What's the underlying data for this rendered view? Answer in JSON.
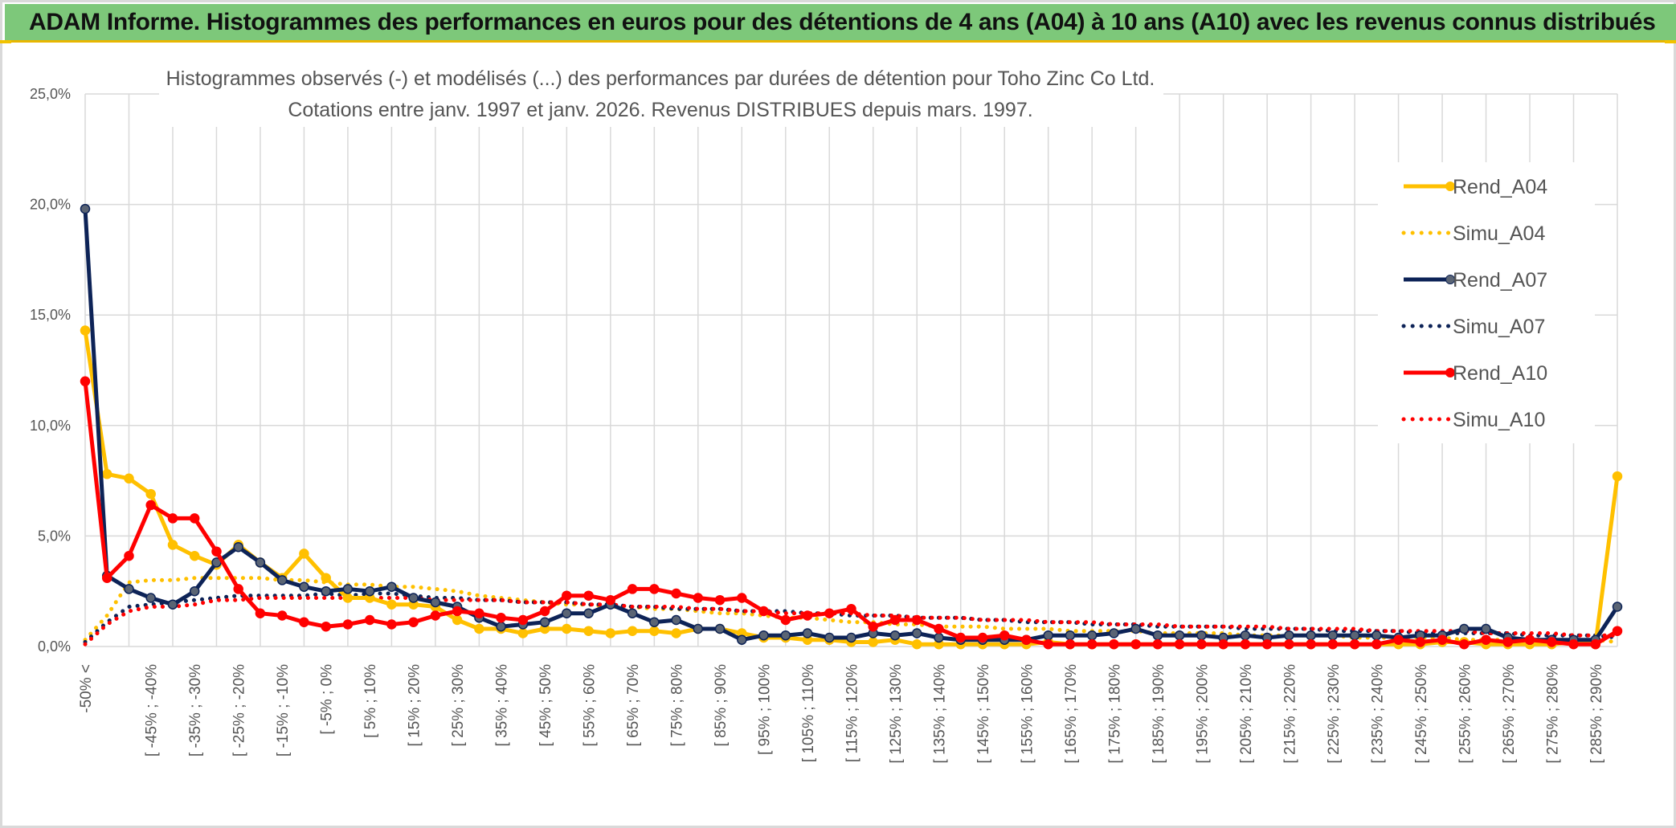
{
  "header": {
    "title": "ADAM Informe. Histogrammes des performances en euros pour des détentions de 4 ans (A04) à 10 ans (A10) avec les revenus connus distribués"
  },
  "colors": {
    "banner": "#7dc87a",
    "A04": "#ffc000",
    "A07": "#0d2357",
    "A10": "#ff0000",
    "grid": "#d9d9d9"
  },
  "chart_data": {
    "type": "line",
    "title": "Histogrammes observés (-) et modélisés (...) des performances par durées de détention pour Toho Zinc Co Ltd.",
    "subtitle": "Cotations entre janv. 1997 et janv. 2026. Revenus DISTRIBUES depuis mars. 1997.",
    "ylim": [
      0,
      25
    ],
    "yticks": [
      "0,0%",
      "5,0%",
      "10,0%",
      "15,0%",
      "20,0%",
      "25,0%"
    ],
    "legend_position": "right",
    "categories": [
      "-50% <",
      "[ -50% ; -45%",
      "[ -45% ; -40%",
      "[ -40% ; -35%",
      "[ -35% ; -30%",
      "[ -30% ; -25%",
      "[ -25% ; -20%",
      "[ -20% ; -15%",
      "[ -15% ; -10%",
      "[ -10% ; -5%",
      "[ -5% ; 0%",
      "[ 0% ; 5%",
      "[ 5% ; 10%",
      "[ 10% ; 15%",
      "[ 15% ; 20%",
      "[ 20% ; 25%",
      "[ 25% ; 30%",
      "[ 30% ; 35%",
      "[ 35% ; 40%",
      "[ 40% ; 45%",
      "[ 45% ; 50%",
      "[ 50% ; 55%",
      "[ 55% ; 60%",
      "[ 60% ; 65%",
      "[ 65% ; 70%",
      "[ 70% ; 75%",
      "[ 75% ; 80%",
      "[ 80% ; 85%",
      "[ 85% ; 90%",
      "[ 90% ; 95%",
      "[ 95% ; 100%",
      "[ 100% ; 105%",
      "[ 105% ; 110%",
      "[ 110% ; 115%",
      "[ 115% ; 120%",
      "[ 120% ; 125%",
      "[ 125% ; 130%",
      "[ 130% ; 135%",
      "[ 135% ; 140%",
      "[ 140% ; 145%",
      "[ 145% ; 150%",
      "[ 150% ; 155%",
      "[ 155% ; 160%",
      "[ 160% ; 165%",
      "[ 165% ; 170%",
      "[ 170% ; 175%",
      "[ 175% ; 180%",
      "[ 180% ; 185%",
      "[ 185% ; 190%",
      "[ 190% ; 195%",
      "[ 195% ; 200%",
      "[ 200% ; 205%",
      "[ 205% ; 210%",
      "[ 210% ; 215%",
      "[ 215% ; 220%",
      "[ 220% ; 225%",
      "[ 225% ; 230%",
      "[ 230% ; 235%",
      "[ 235% ; 240%",
      "[ 240% ; 245%",
      "[ 245% ; 250%",
      "[ 250% ; 255%",
      "[ 255% ; 260%",
      "[ 260% ; 265%",
      "[ 265% ; 270%",
      "[ 270% ; 275%",
      "[ 275% ; 280%",
      "[ 280% ; 285%",
      "[ 285% ; 290%",
      "[ 290% ; 295%",
      "> 295%"
    ],
    "visible_tick_labels": [
      "-50% <",
      "[ -45% ; -40%",
      "[ -35% ; -30%",
      "[ -25% ; -20%",
      "[ -15% ; -10%",
      "[ -5% ; 0%",
      "[ 5% ; 10%",
      "[ 15% ; 20%",
      "[ 25% ; 30%",
      "[ 35% ; 40%",
      "[ 45% ; 50%",
      "[ 55% ; 60%",
      "[ 65% ; 70%",
      "[ 75% ; 80%",
      "[ 85% ; 90%",
      "[ 95% ; 100%",
      "[ 105% ; 110%",
      "[ 115% ; 120%",
      "[ 125% ; 130%",
      "[ 135% ; 140%",
      "[ 145% ; 150%",
      "[ 155% ; 160%",
      "[ 165% ; 170%",
      "[ 175% ; 180%",
      "[ 185% ; 190%",
      "[ 195% ; 200%",
      "[ 205% ; 210%",
      "[ 215% ; 220%",
      "[ 225% ; 230%",
      "[ 235% ; 240%",
      "[ 245% ; 250%",
      "[ 255% ; 260%",
      "[ 265% ; 270%",
      "[ 275% ; 280%",
      "[ 285% ; 290%"
    ],
    "series": [
      {
        "name": "Rend_A04",
        "style": "solid",
        "color": "#ffc000",
        "values": [
          14.3,
          7.8,
          7.6,
          6.9,
          4.6,
          4.1,
          3.7,
          4.6,
          3.8,
          3.1,
          4.2,
          3.1,
          2.2,
          2.2,
          1.9,
          1.9,
          1.8,
          1.2,
          0.8,
          0.8,
          0.6,
          0.8,
          0.8,
          0.7,
          0.6,
          0.7,
          0.7,
          0.6,
          0.8,
          0.8,
          0.6,
          0.4,
          0.4,
          0.3,
          0.3,
          0.2,
          0.2,
          0.3,
          0.1,
          0.1,
          0.1,
          0.1,
          0.1,
          0.1,
          0.2,
          0.1,
          0.1,
          0.1,
          0.1,
          0.1,
          0.1,
          0.1,
          0.1,
          0.1,
          0.1,
          0.1,
          0.1,
          0.1,
          0.1,
          0.1,
          0.1,
          0.1,
          0.2,
          0.2,
          0.1,
          0.1,
          0.1,
          0.1,
          0.2,
          0.1,
          7.7
        ]
      },
      {
        "name": "Simu_A04",
        "style": "dotted",
        "color": "#ffc000",
        "values": [
          0.3,
          1.4,
          2.9,
          3.0,
          3.0,
          3.1,
          3.1,
          3.1,
          3.1,
          3.0,
          3.0,
          2.9,
          2.8,
          2.8,
          2.7,
          2.7,
          2.6,
          2.5,
          2.3,
          2.2,
          2.1,
          2.0,
          1.9,
          1.9,
          1.8,
          1.8,
          1.7,
          1.7,
          1.6,
          1.5,
          1.5,
          1.4,
          1.3,
          1.3,
          1.2,
          1.1,
          1.1,
          1.0,
          1.0,
          0.9,
          0.9,
          0.9,
          0.8,
          0.8,
          0.8,
          0.7,
          0.7,
          0.7,
          0.7,
          0.6,
          0.6,
          0.6,
          0.6,
          0.5,
          0.5,
          0.5,
          0.5,
          0.5,
          0.4,
          0.4,
          0.4,
          0.4,
          0.4,
          0.3,
          0.3,
          0.3,
          0.3,
          0.3,
          0.3,
          0.3,
          0.2
        ]
      },
      {
        "name": "Rend_A07",
        "style": "solid",
        "color": "#0d2357",
        "values": [
          19.8,
          3.2,
          2.6,
          2.2,
          1.9,
          2.5,
          3.8,
          4.5,
          3.8,
          3.0,
          2.7,
          2.5,
          2.6,
          2.5,
          2.7,
          2.2,
          2.0,
          1.8,
          1.3,
          0.9,
          1.0,
          1.1,
          1.5,
          1.5,
          1.9,
          1.5,
          1.1,
          1.2,
          0.8,
          0.8,
          0.3,
          0.5,
          0.5,
          0.6,
          0.4,
          0.4,
          0.6,
          0.5,
          0.6,
          0.4,
          0.3,
          0.3,
          0.3,
          0.3,
          0.5,
          0.5,
          0.5,
          0.6,
          0.8,
          0.5,
          0.5,
          0.5,
          0.4,
          0.5,
          0.4,
          0.5,
          0.5,
          0.5,
          0.5,
          0.5,
          0.4,
          0.5,
          0.5,
          0.8,
          0.8,
          0.4,
          0.3,
          0.3,
          0.3,
          0.3,
          1.8
        ]
      },
      {
        "name": "Simu_A07",
        "style": "dotted",
        "color": "#0d2357",
        "values": [
          0.2,
          1.1,
          1.8,
          1.9,
          2.0,
          2.1,
          2.2,
          2.3,
          2.3,
          2.3,
          2.3,
          2.4,
          2.3,
          2.4,
          2.4,
          2.3,
          2.2,
          2.2,
          2.1,
          2.1,
          2.0,
          2.0,
          2.0,
          1.9,
          1.9,
          1.8,
          1.8,
          1.7,
          1.7,
          1.7,
          1.6,
          1.6,
          1.6,
          1.5,
          1.5,
          1.4,
          1.4,
          1.4,
          1.3,
          1.3,
          1.3,
          1.2,
          1.2,
          1.1,
          1.1,
          1.1,
          1.0,
          1.0,
          1.0,
          0.9,
          0.9,
          0.9,
          0.9,
          0.8,
          0.8,
          0.8,
          0.8,
          0.7,
          0.7,
          0.7,
          0.7,
          0.6,
          0.6,
          0.6,
          0.6,
          0.6,
          0.5,
          0.5,
          0.5,
          0.5,
          0.4
        ]
      },
      {
        "name": "Rend_A10",
        "style": "solid",
        "color": "#ff0000",
        "values": [
          12.0,
          3.1,
          4.1,
          6.4,
          5.8,
          5.8,
          4.3,
          2.6,
          1.5,
          1.4,
          1.1,
          0.9,
          1.0,
          1.2,
          1.0,
          1.1,
          1.4,
          1.6,
          1.5,
          1.3,
          1.2,
          1.6,
          2.3,
          2.3,
          2.1,
          2.6,
          2.6,
          2.4,
          2.2,
          2.1,
          2.2,
          1.6,
          1.2,
          1.4,
          1.5,
          1.7,
          0.9,
          1.2,
          1.2,
          0.8,
          0.4,
          0.4,
          0.5,
          0.3,
          0.1,
          0.1,
          0.1,
          0.1,
          0.1,
          0.1,
          0.1,
          0.1,
          0.1,
          0.1,
          0.1,
          0.1,
          0.1,
          0.1,
          0.1,
          0.1,
          0.3,
          0.2,
          0.3,
          0.1,
          0.3,
          0.2,
          0.3,
          0.2,
          0.1,
          0.1,
          0.7
        ]
      },
      {
        "name": "Simu_A10",
        "style": "dotted",
        "color": "#ff0000",
        "values": [
          0.1,
          1.0,
          1.6,
          1.8,
          1.8,
          1.9,
          2.1,
          2.1,
          2.2,
          2.2,
          2.2,
          2.2,
          2.2,
          2.2,
          2.2,
          2.2,
          2.1,
          2.1,
          2.1,
          2.1,
          2.0,
          2.0,
          2.0,
          1.9,
          1.9,
          1.8,
          1.8,
          1.8,
          1.7,
          1.7,
          1.6,
          1.6,
          1.5,
          1.5,
          1.5,
          1.5,
          1.4,
          1.4,
          1.3,
          1.3,
          1.3,
          1.2,
          1.2,
          1.2,
          1.1,
          1.1,
          1.1,
          1.0,
          1.0,
          1.0,
          0.9,
          0.9,
          0.9,
          0.9,
          0.9,
          0.8,
          0.8,
          0.8,
          0.8,
          0.7,
          0.7,
          0.7,
          0.7,
          0.7,
          0.6,
          0.6,
          0.6,
          0.6,
          0.5,
          0.5,
          0.5
        ]
      }
    ]
  }
}
